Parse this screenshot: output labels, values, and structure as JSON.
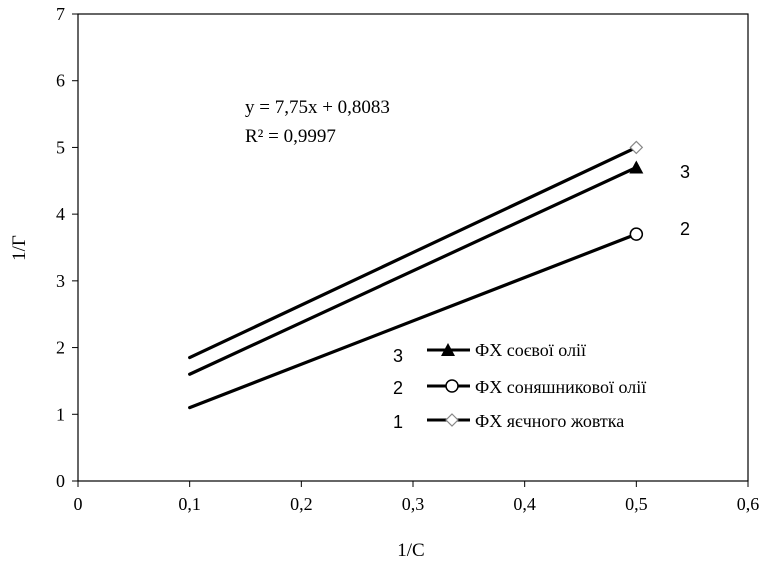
{
  "chart_data": {
    "type": "line",
    "xlabel": "1/C",
    "ylabel": "1/Г",
    "xlim": [
      0,
      0.6
    ],
    "ylim": [
      0,
      7
    ],
    "x_ticks": [
      "0",
      "0,1",
      "0,2",
      "0,3",
      "0,4",
      "0,5",
      "0,6"
    ],
    "y_ticks": [
      "0",
      "1",
      "2",
      "3",
      "4",
      "5",
      "6",
      "7"
    ],
    "x_tick_values": [
      0,
      0.1,
      0.2,
      0.3,
      0.4,
      0.5,
      0.6
    ],
    "y_tick_values": [
      0,
      1,
      2,
      3,
      4,
      5,
      6,
      7
    ],
    "grid": false,
    "legend_position": "bottom-right",
    "annotation": {
      "equation": "y = 7,75x + 0,8083",
      "r2": "R² = 0,9997"
    },
    "series": [
      {
        "name": "ФХ соєвої олії",
        "number": "3",
        "marker": "filled-triangle",
        "color": "#000000",
        "x": [
          0.1,
          0.5
        ],
        "y": [
          1.6,
          4.7
        ]
      },
      {
        "name": "ФХ соняшникової олії",
        "number": "2",
        "marker": "open-circle",
        "color": "#000000",
        "x": [
          0.1,
          0.5
        ],
        "y": [
          1.1,
          3.7
        ]
      },
      {
        "name": "ФХ яєчного жовтка",
        "number": "1",
        "marker": "open-diamond",
        "color": "#000000",
        "x": [
          0.1,
          0.5
        ],
        "y": [
          1.85,
          5.0
        ]
      }
    ],
    "line_number_labels": [
      "3",
      "2"
    ]
  }
}
